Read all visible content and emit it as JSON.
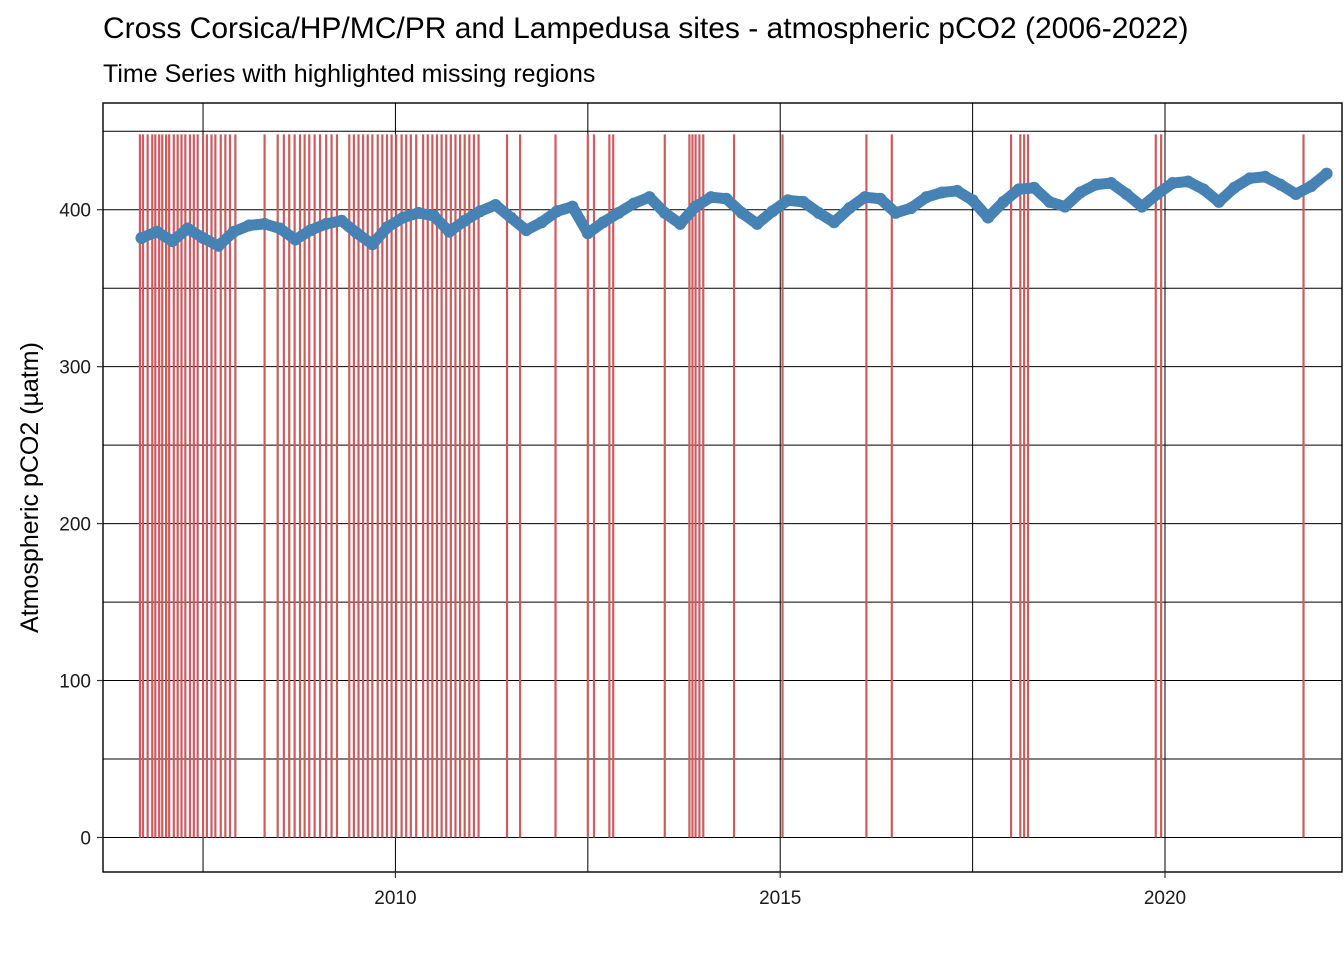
{
  "chart_data": {
    "type": "scatter",
    "title": "Cross Corsica/HP/MC/PR and Lampedusa sites - atmospheric pCO2 (2006-2022)",
    "subtitle": "Time Series with highlighted missing regions",
    "xlabel": "",
    "ylabel": "Atmospheric pCO2 (µatm)",
    "xlim": [
      2006.2,
      2022.3
    ],
    "ylim": [
      -22,
      468
    ],
    "x_ticks": [
      2010,
      2015,
      2020
    ],
    "y_ticks": [
      0,
      100,
      200,
      300,
      400
    ],
    "grid": true,
    "colors": {
      "series": "#4682b4",
      "missing": "#cd5c5c"
    },
    "series": [
      {
        "points": [
          [
            2006.7,
            382
          ],
          [
            2006.9,
            386
          ],
          [
            2007.1,
            380
          ],
          [
            2007.3,
            388
          ],
          [
            2007.5,
            382
          ],
          [
            2007.7,
            377
          ],
          [
            2007.9,
            386
          ],
          [
            2008.1,
            390
          ],
          [
            2008.3,
            391
          ],
          [
            2008.5,
            388
          ],
          [
            2008.7,
            381
          ],
          [
            2008.9,
            387
          ],
          [
            2009.1,
            391
          ],
          [
            2009.3,
            393
          ],
          [
            2009.5,
            385
          ],
          [
            2009.7,
            378
          ],
          [
            2009.9,
            389
          ],
          [
            2010.1,
            395
          ],
          [
            2010.3,
            398
          ],
          [
            2010.5,
            396
          ],
          [
            2010.7,
            386
          ],
          [
            2010.9,
            393
          ],
          [
            2011.1,
            399
          ],
          [
            2011.3,
            403
          ],
          [
            2011.5,
            395
          ],
          [
            2011.7,
            387
          ],
          [
            2011.9,
            392
          ],
          [
            2012.1,
            399
          ],
          [
            2012.3,
            402
          ],
          [
            2012.5,
            385
          ],
          [
            2012.7,
            392
          ],
          [
            2012.9,
            398
          ],
          [
            2013.1,
            404
          ],
          [
            2013.3,
            408
          ],
          [
            2013.5,
            398
          ],
          [
            2013.7,
            391
          ],
          [
            2013.9,
            402
          ],
          [
            2014.1,
            408
          ],
          [
            2014.3,
            407
          ],
          [
            2014.5,
            398
          ],
          [
            2014.7,
            391
          ],
          [
            2014.9,
            399
          ],
          [
            2015.1,
            406
          ],
          [
            2015.3,
            405
          ],
          [
            2015.5,
            398
          ],
          [
            2015.7,
            392
          ],
          [
            2015.9,
            401
          ],
          [
            2016.1,
            408
          ],
          [
            2016.3,
            407
          ],
          [
            2016.5,
            398
          ],
          [
            2016.7,
            401
          ],
          [
            2016.9,
            408
          ],
          [
            2017.1,
            411
          ],
          [
            2017.3,
            412
          ],
          [
            2017.5,
            406
          ],
          [
            2017.7,
            395
          ],
          [
            2017.9,
            405
          ],
          [
            2018.1,
            413
          ],
          [
            2018.3,
            414
          ],
          [
            2018.5,
            405
          ],
          [
            2018.7,
            402
          ],
          [
            2018.9,
            411
          ],
          [
            2019.1,
            416
          ],
          [
            2019.3,
            417
          ],
          [
            2019.5,
            410
          ],
          [
            2019.7,
            402
          ],
          [
            2019.9,
            410
          ],
          [
            2020.1,
            417
          ],
          [
            2020.3,
            418
          ],
          [
            2020.5,
            413
          ],
          [
            2020.7,
            405
          ],
          [
            2020.9,
            414
          ],
          [
            2021.1,
            420
          ],
          [
            2021.3,
            421
          ],
          [
            2021.5,
            416
          ],
          [
            2021.7,
            410
          ],
          [
            2021.9,
            415
          ],
          [
            2022.1,
            423
          ]
        ]
      }
    ],
    "missing_regions": [
      2006.68,
      2006.72,
      2006.78,
      2006.84,
      2006.88,
      2006.93,
      2006.97,
      2007.02,
      2007.06,
      2007.12,
      2007.17,
      2007.22,
      2007.27,
      2007.33,
      2007.38,
      2007.43,
      2007.5,
      2007.55,
      2007.61,
      2007.66,
      2007.73,
      2007.79,
      2007.85,
      2007.92,
      2008.3,
      2008.47,
      2008.55,
      2008.62,
      2008.69,
      2008.76,
      2008.82,
      2008.88,
      2008.95,
      2009.02,
      2009.1,
      2009.17,
      2009.24,
      2009.4,
      2009.46,
      2009.52,
      2009.58,
      2009.64,
      2009.7,
      2009.77,
      2009.83,
      2009.89,
      2009.95,
      2010.01,
      2010.08,
      2010.14,
      2010.2,
      2010.27,
      2010.36,
      2010.42,
      2010.48,
      2010.54,
      2010.6,
      2010.66,
      2010.72,
      2010.78,
      2010.84,
      2010.9,
      2010.96,
      2011.02,
      2011.08,
      2011.45,
      2011.62,
      2012.08,
      2012.5,
      2012.58,
      2012.78,
      2012.83,
      2013.5,
      2013.82,
      2013.86,
      2013.9,
      2013.95,
      2014.0,
      2014.4,
      2015.03,
      2016.12,
      2016.45,
      2018.0,
      2018.12,
      2018.17,
      2018.22,
      2019.88,
      2019.95,
      2021.8
    ],
    "missing_range": [
      0,
      448
    ]
  }
}
